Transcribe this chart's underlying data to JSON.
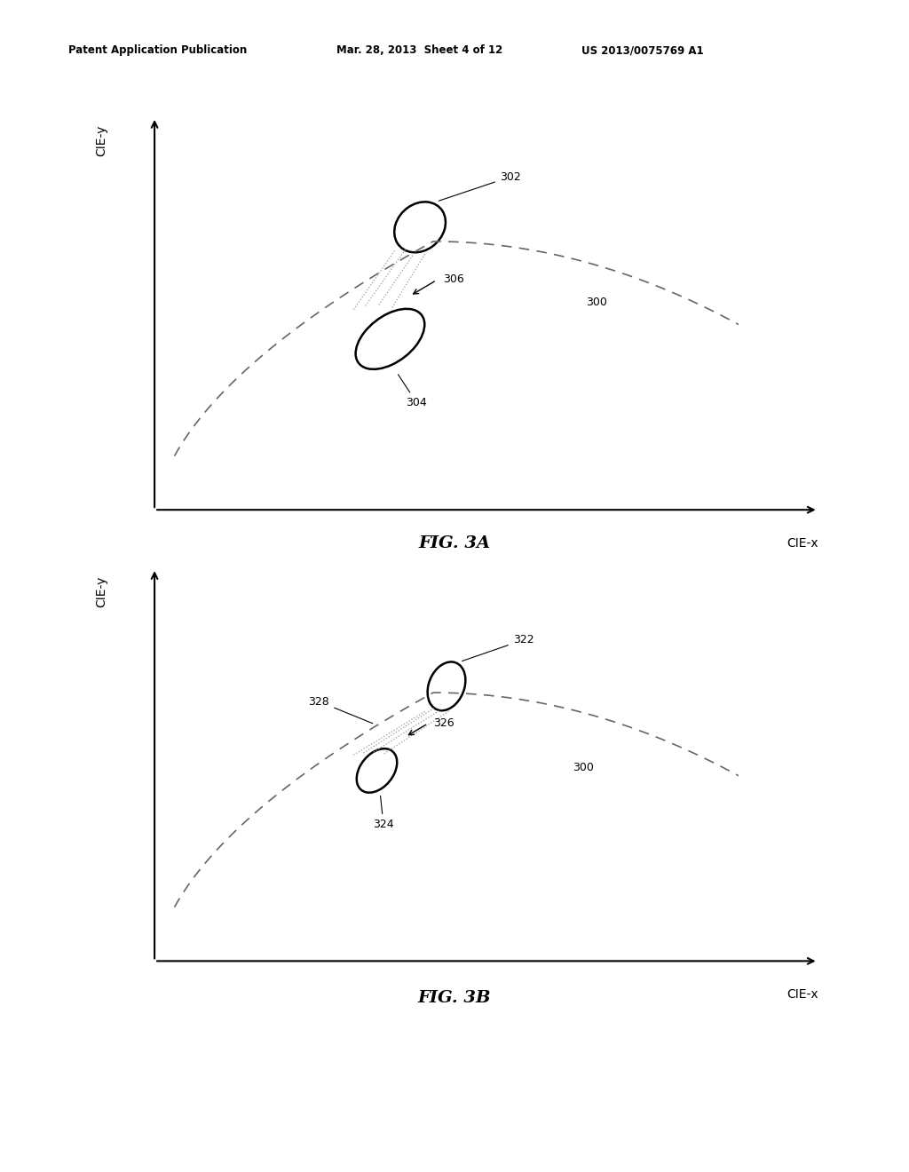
{
  "bg_color": "#ffffff",
  "header_left": "Patent Application Publication",
  "header_center": "Mar. 28, 2013  Sheet 4 of 12",
  "header_right": "US 2013/0075769 A1",
  "fig_label_A": "FIG. 3A",
  "fig_label_B": "FIG. 3B",
  "xlabel": "CIE-x",
  "ylabel": "CIE-y",
  "dashed_color": "#666666",
  "dotted_color": "#999999",
  "label_300": "300",
  "label_302": "302",
  "label_304": "304",
  "label_306": "306",
  "label_322": "322",
  "label_324": "324",
  "label_326": "326",
  "label_328": "328"
}
